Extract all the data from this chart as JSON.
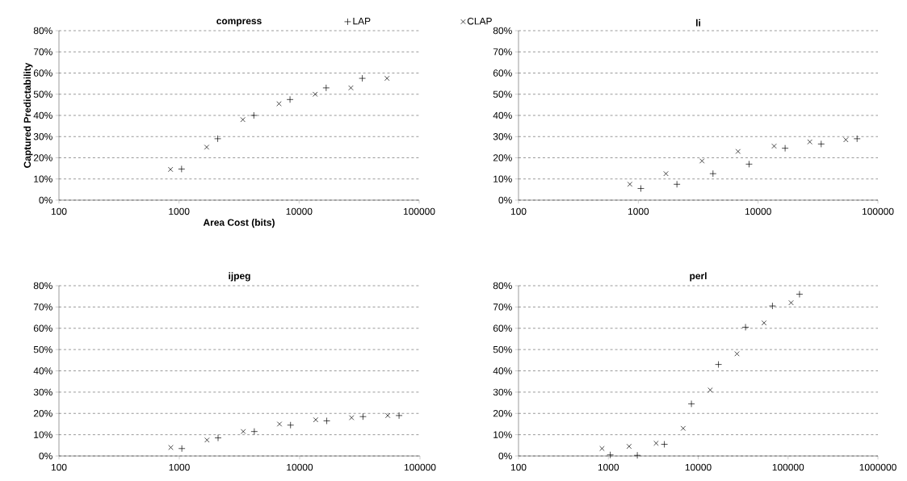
{
  "chart_data": [
    {
      "type": "scatter",
      "title": "compress",
      "xlabel": "Area Cost (bits)",
      "ylabel": "Captured Predictability",
      "log": "x",
      "grid": "y",
      "legend": "top right",
      "xlim": [
        100,
        100000
      ],
      "xticks": [
        100,
        1000,
        10000,
        100000
      ],
      "ylim": [
        0,
        80
      ],
      "yticks": [
        {
          "value": 0,
          "label": "0%"
        },
        {
          "value": 10,
          "label": "10%"
        },
        {
          "value": 20,
          "label": "20%"
        },
        {
          "value": 30,
          "label": "30%"
        },
        {
          "value": 40,
          "label": "40%"
        },
        {
          "value": 50,
          "label": "50%"
        },
        {
          "value": 60,
          "label": "60%"
        },
        {
          "value": 70,
          "label": "70%"
        },
        {
          "value": 80,
          "label": "80%"
        }
      ],
      "series": [
        {
          "name": "LAP",
          "color": "#000000",
          "marker": "plus",
          "x": [
            1050,
            2100,
            4200,
            8400,
            16800,
            33600
          ],
          "values": [
            14.7,
            29,
            40,
            47.5,
            53,
            57.5
          ]
        },
        {
          "name": "CLAP",
          "color": "#000000",
          "marker": "cross",
          "x": [
            850,
            1700,
            3400,
            6800,
            13600,
            27000,
            54000
          ],
          "values": [
            14.5,
            25,
            38,
            45.5,
            50,
            53,
            57.5
          ]
        }
      ]
    },
    {
      "type": "scatter",
      "title": "li",
      "log": "x",
      "grid": "y",
      "xlim": [
        100,
        100000
      ],
      "xticks": [
        100,
        1000,
        10000,
        100000
      ],
      "ylim": [
        0,
        80
      ],
      "yticks": [
        {
          "value": 0,
          "label": "0%"
        },
        {
          "value": 10,
          "label": "10%"
        },
        {
          "value": 20,
          "label": "20%"
        },
        {
          "value": 30,
          "label": "30%"
        },
        {
          "value": 40,
          "label": "40%"
        },
        {
          "value": 50,
          "label": "50%"
        },
        {
          "value": 60,
          "label": "60%"
        },
        {
          "value": 70,
          "label": "70%"
        },
        {
          "value": 80,
          "label": "80%"
        }
      ],
      "series": [
        {
          "color": "#000000",
          "marker": "plus",
          "x": [
            1050,
            2100,
            4200,
            8400,
            16800,
            33600,
            67000
          ],
          "values": [
            5.5,
            7.5,
            12.5,
            17,
            24.5,
            26.5,
            29
          ]
        },
        {
          "color": "#000000",
          "marker": "cross",
          "x": [
            850,
            1700,
            3400,
            6800,
            13600,
            27000,
            54000
          ],
          "values": [
            7.5,
            12.5,
            18.5,
            23,
            25.5,
            27.5,
            28.5
          ]
        }
      ]
    },
    {
      "type": "scatter",
      "title": "ijpeg",
      "log": "x",
      "grid": "y",
      "xlim": [
        100,
        100000
      ],
      "xticks": [
        100,
        1000,
        10000,
        100000
      ],
      "ylim": [
        0,
        80
      ],
      "yticks": [
        {
          "value": 0,
          "label": "0%"
        },
        {
          "value": 10,
          "label": "10%"
        },
        {
          "value": 20,
          "label": "20%"
        },
        {
          "value": 30,
          "label": "30%"
        },
        {
          "value": 40,
          "label": "40%"
        },
        {
          "value": 50,
          "label": "50%"
        },
        {
          "value": 60,
          "label": "60%"
        },
        {
          "value": 70,
          "label": "70%"
        },
        {
          "value": 80,
          "label": "80%"
        }
      ],
      "series": [
        {
          "color": "#000000",
          "marker": "plus",
          "x": [
            1050,
            2100,
            4200,
            8400,
            16800,
            33600,
            67000
          ],
          "values": [
            3.5,
            8.5,
            11.5,
            14.5,
            16.5,
            18.5,
            19
          ]
        },
        {
          "color": "#000000",
          "marker": "cross",
          "x": [
            850,
            1700,
            3400,
            6800,
            13600,
            27000,
            54000
          ],
          "values": [
            4,
            7.5,
            11.5,
            15,
            17,
            18,
            19
          ]
        }
      ]
    },
    {
      "type": "scatter",
      "title": "perl",
      "log": "x",
      "grid": "y",
      "xlim": [
        100,
        1000000
      ],
      "xticks": [
        100,
        1000,
        10000,
        100000,
        1000000
      ],
      "ylim": [
        0,
        80
      ],
      "yticks": [
        {
          "value": 0,
          "label": "0%"
        },
        {
          "value": 10,
          "label": "10%"
        },
        {
          "value": 20,
          "label": "20%"
        },
        {
          "value": 30,
          "label": "30%"
        },
        {
          "value": 40,
          "label": "40%"
        },
        {
          "value": 50,
          "label": "50%"
        },
        {
          "value": 60,
          "label": "60%"
        },
        {
          "value": 70,
          "label": "70%"
        },
        {
          "value": 80,
          "label": "80%"
        }
      ],
      "series": [
        {
          "color": "#000000",
          "marker": "plus",
          "x": [
            1050,
            2100,
            4200,
            8400,
            16800,
            33600,
            67000,
            134000
          ],
          "values": [
            0.5,
            0.3,
            5.5,
            24.5,
            43,
            60.5,
            70.5,
            76
          ]
        },
        {
          "color": "#000000",
          "marker": "cross",
          "x": [
            850,
            1700,
            3400,
            6800,
            13600,
            27000,
            54000,
            108000
          ],
          "values": [
            3.5,
            4.5,
            6,
            13,
            31,
            48,
            62.5,
            72
          ]
        }
      ]
    }
  ]
}
